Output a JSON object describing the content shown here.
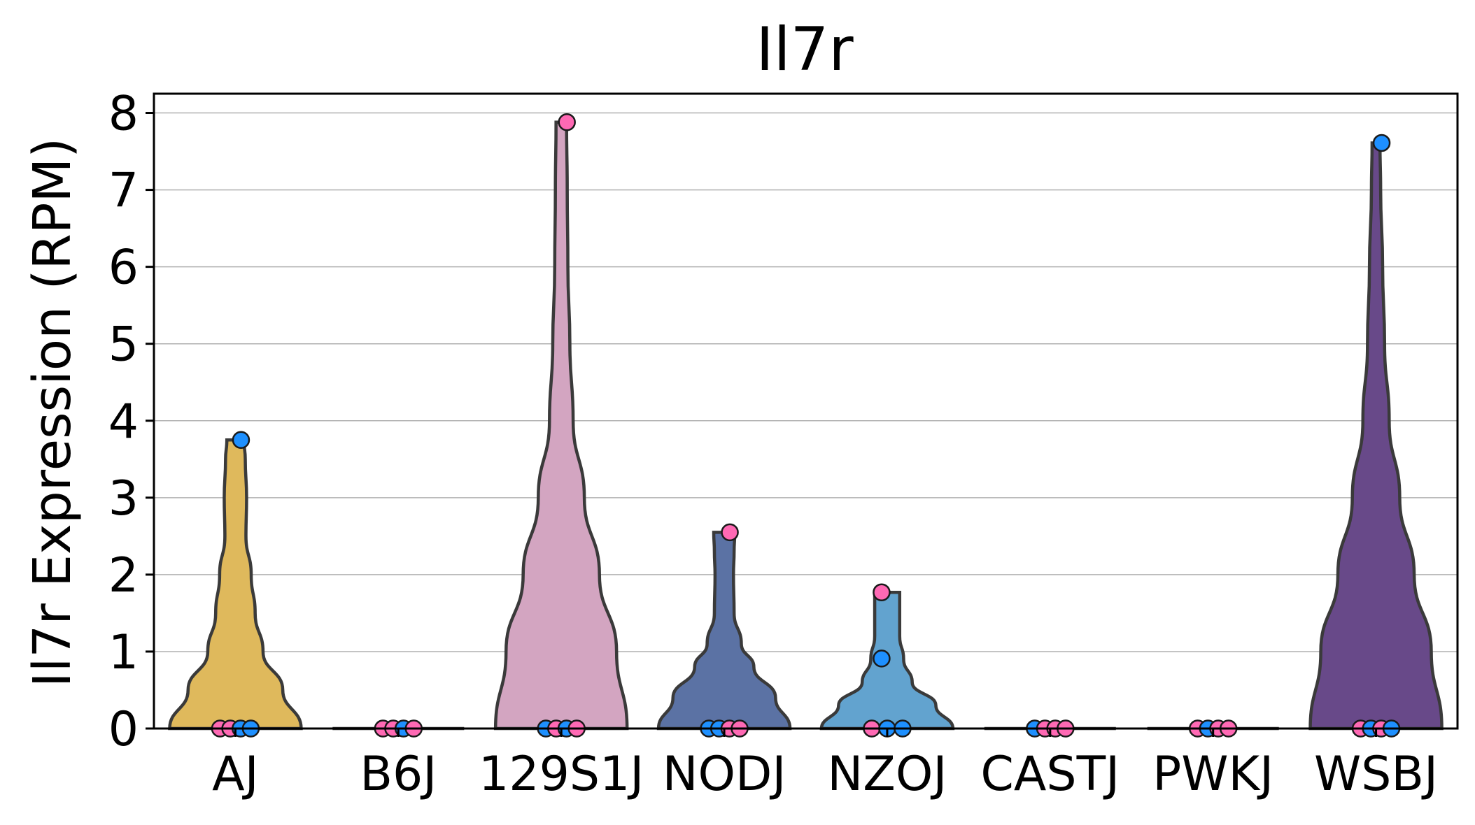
{
  "chart_data": {
    "type": "violin",
    "title": "Il7r",
    "xlabel": "",
    "ylabel": "Il7r Expression (RPM)",
    "ylim": [
      0,
      8.25
    ],
    "yticks": [
      "0",
      "1",
      "2",
      "3",
      "4",
      "5",
      "6",
      "7",
      "8"
    ],
    "grid": "horizontal",
    "categories": [
      "AJ",
      "B6J",
      "129S1J",
      "NODJ",
      "NZOJ",
      "CASTJ",
      "PWKJ",
      "WSBJ"
    ],
    "colors": {
      "AJ": "#dfb95c",
      "B6J": "#c8c8c8",
      "129S1J": "#d3a5c1",
      "NODJ": "#5b72a4",
      "NZOJ": "#62a3cf",
      "CASTJ": "#c8c8c8",
      "PWKJ": "#c8c8c8",
      "WSBJ": "#684989"
    },
    "point_colors": {
      "blue": "#1e90ff",
      "pink": "#ff69b4"
    },
    "groups": [
      {
        "name": "AJ",
        "max": 3.75,
        "points": [
          {
            "y": 0,
            "c": "pink"
          },
          {
            "y": 0,
            "c": "pink"
          },
          {
            "y": 0,
            "c": "blue"
          },
          {
            "y": 0,
            "c": "blue"
          },
          {
            "y": 3.75,
            "c": "blue"
          }
        ],
        "profile": [
          [
            0,
            1
          ],
          [
            0.5,
            0.72
          ],
          [
            1,
            0.42
          ],
          [
            1.5,
            0.3
          ],
          [
            2,
            0.24
          ],
          [
            2.5,
            0.16
          ],
          [
            3,
            0.17
          ],
          [
            3.5,
            0.15
          ],
          [
            3.75,
            0.13
          ]
        ]
      },
      {
        "name": "B6J",
        "max": 0,
        "points": [
          {
            "y": 0,
            "c": "pink"
          },
          {
            "y": 0,
            "c": "pink"
          },
          {
            "y": 0,
            "c": "blue"
          },
          {
            "y": 0,
            "c": "pink"
          }
        ],
        "profile": []
      },
      {
        "name": "129S1J",
        "max": 7.88,
        "points": [
          {
            "y": 0,
            "c": "blue"
          },
          {
            "y": 0,
            "c": "pink"
          },
          {
            "y": 0,
            "c": "blue"
          },
          {
            "y": 0,
            "c": "pink"
          },
          {
            "y": 7.88,
            "c": "pink"
          }
        ],
        "profile": [
          [
            0,
            1
          ],
          [
            1,
            0.84
          ],
          [
            2,
            0.58
          ],
          [
            3,
            0.35
          ],
          [
            4,
            0.18
          ],
          [
            5,
            0.13
          ],
          [
            6,
            0.1
          ],
          [
            7,
            0.09
          ],
          [
            7.88,
            0.08
          ]
        ]
      },
      {
        "name": "NODJ",
        "max": 2.55,
        "points": [
          {
            "y": 0,
            "c": "blue"
          },
          {
            "y": 0,
            "c": "blue"
          },
          {
            "y": 0,
            "c": "pink"
          },
          {
            "y": 0,
            "c": "pink"
          },
          {
            "y": 2.55,
            "c": "pink"
          }
        ],
        "profile": [
          [
            0,
            1
          ],
          [
            0.4,
            0.78
          ],
          [
            0.8,
            0.45
          ],
          [
            1.1,
            0.26
          ],
          [
            1.5,
            0.15
          ],
          [
            2,
            0.14
          ],
          [
            2.3,
            0.15
          ],
          [
            2.55,
            0.16
          ]
        ]
      },
      {
        "name": "NZOJ",
        "max": 1.77,
        "points": [
          {
            "y": 0,
            "c": "pink"
          },
          {
            "y": 0,
            "c": "blue"
          },
          {
            "y": 0,
            "c": "blue"
          },
          {
            "y": 0.91,
            "c": "blue"
          },
          {
            "y": 1.77,
            "c": "pink"
          }
        ],
        "profile": [
          [
            0,
            1
          ],
          [
            0.3,
            0.74
          ],
          [
            0.6,
            0.38
          ],
          [
            0.9,
            0.25
          ],
          [
            1.2,
            0.19
          ],
          [
            1.5,
            0.19
          ],
          [
            1.77,
            0.19
          ]
        ]
      },
      {
        "name": "CASTJ",
        "max": 0,
        "points": [
          {
            "y": 0,
            "c": "blue"
          },
          {
            "y": 0,
            "c": "pink"
          },
          {
            "y": 0,
            "c": "pink"
          },
          {
            "y": 0,
            "c": "pink"
          }
        ],
        "profile": []
      },
      {
        "name": "PWKJ",
        "max": 0,
        "points": [
          {
            "y": 0,
            "c": "pink"
          },
          {
            "y": 0,
            "c": "blue"
          },
          {
            "y": 0,
            "c": "pink"
          },
          {
            "y": 0,
            "c": "pink"
          }
        ],
        "profile": []
      },
      {
        "name": "WSBJ",
        "max": 7.61,
        "points": [
          {
            "y": 0,
            "c": "pink"
          },
          {
            "y": 0,
            "c": "blue"
          },
          {
            "y": 0,
            "c": "pink"
          },
          {
            "y": 0,
            "c": "blue"
          },
          {
            "y": 7.61,
            "c": "blue"
          }
        ],
        "profile": [
          [
            0,
            1
          ],
          [
            1,
            0.84
          ],
          [
            2,
            0.58
          ],
          [
            3,
            0.36
          ],
          [
            4,
            0.2
          ],
          [
            5,
            0.13
          ],
          [
            6,
            0.1
          ],
          [
            7,
            0.07
          ],
          [
            7.61,
            0.06
          ]
        ]
      }
    ]
  }
}
